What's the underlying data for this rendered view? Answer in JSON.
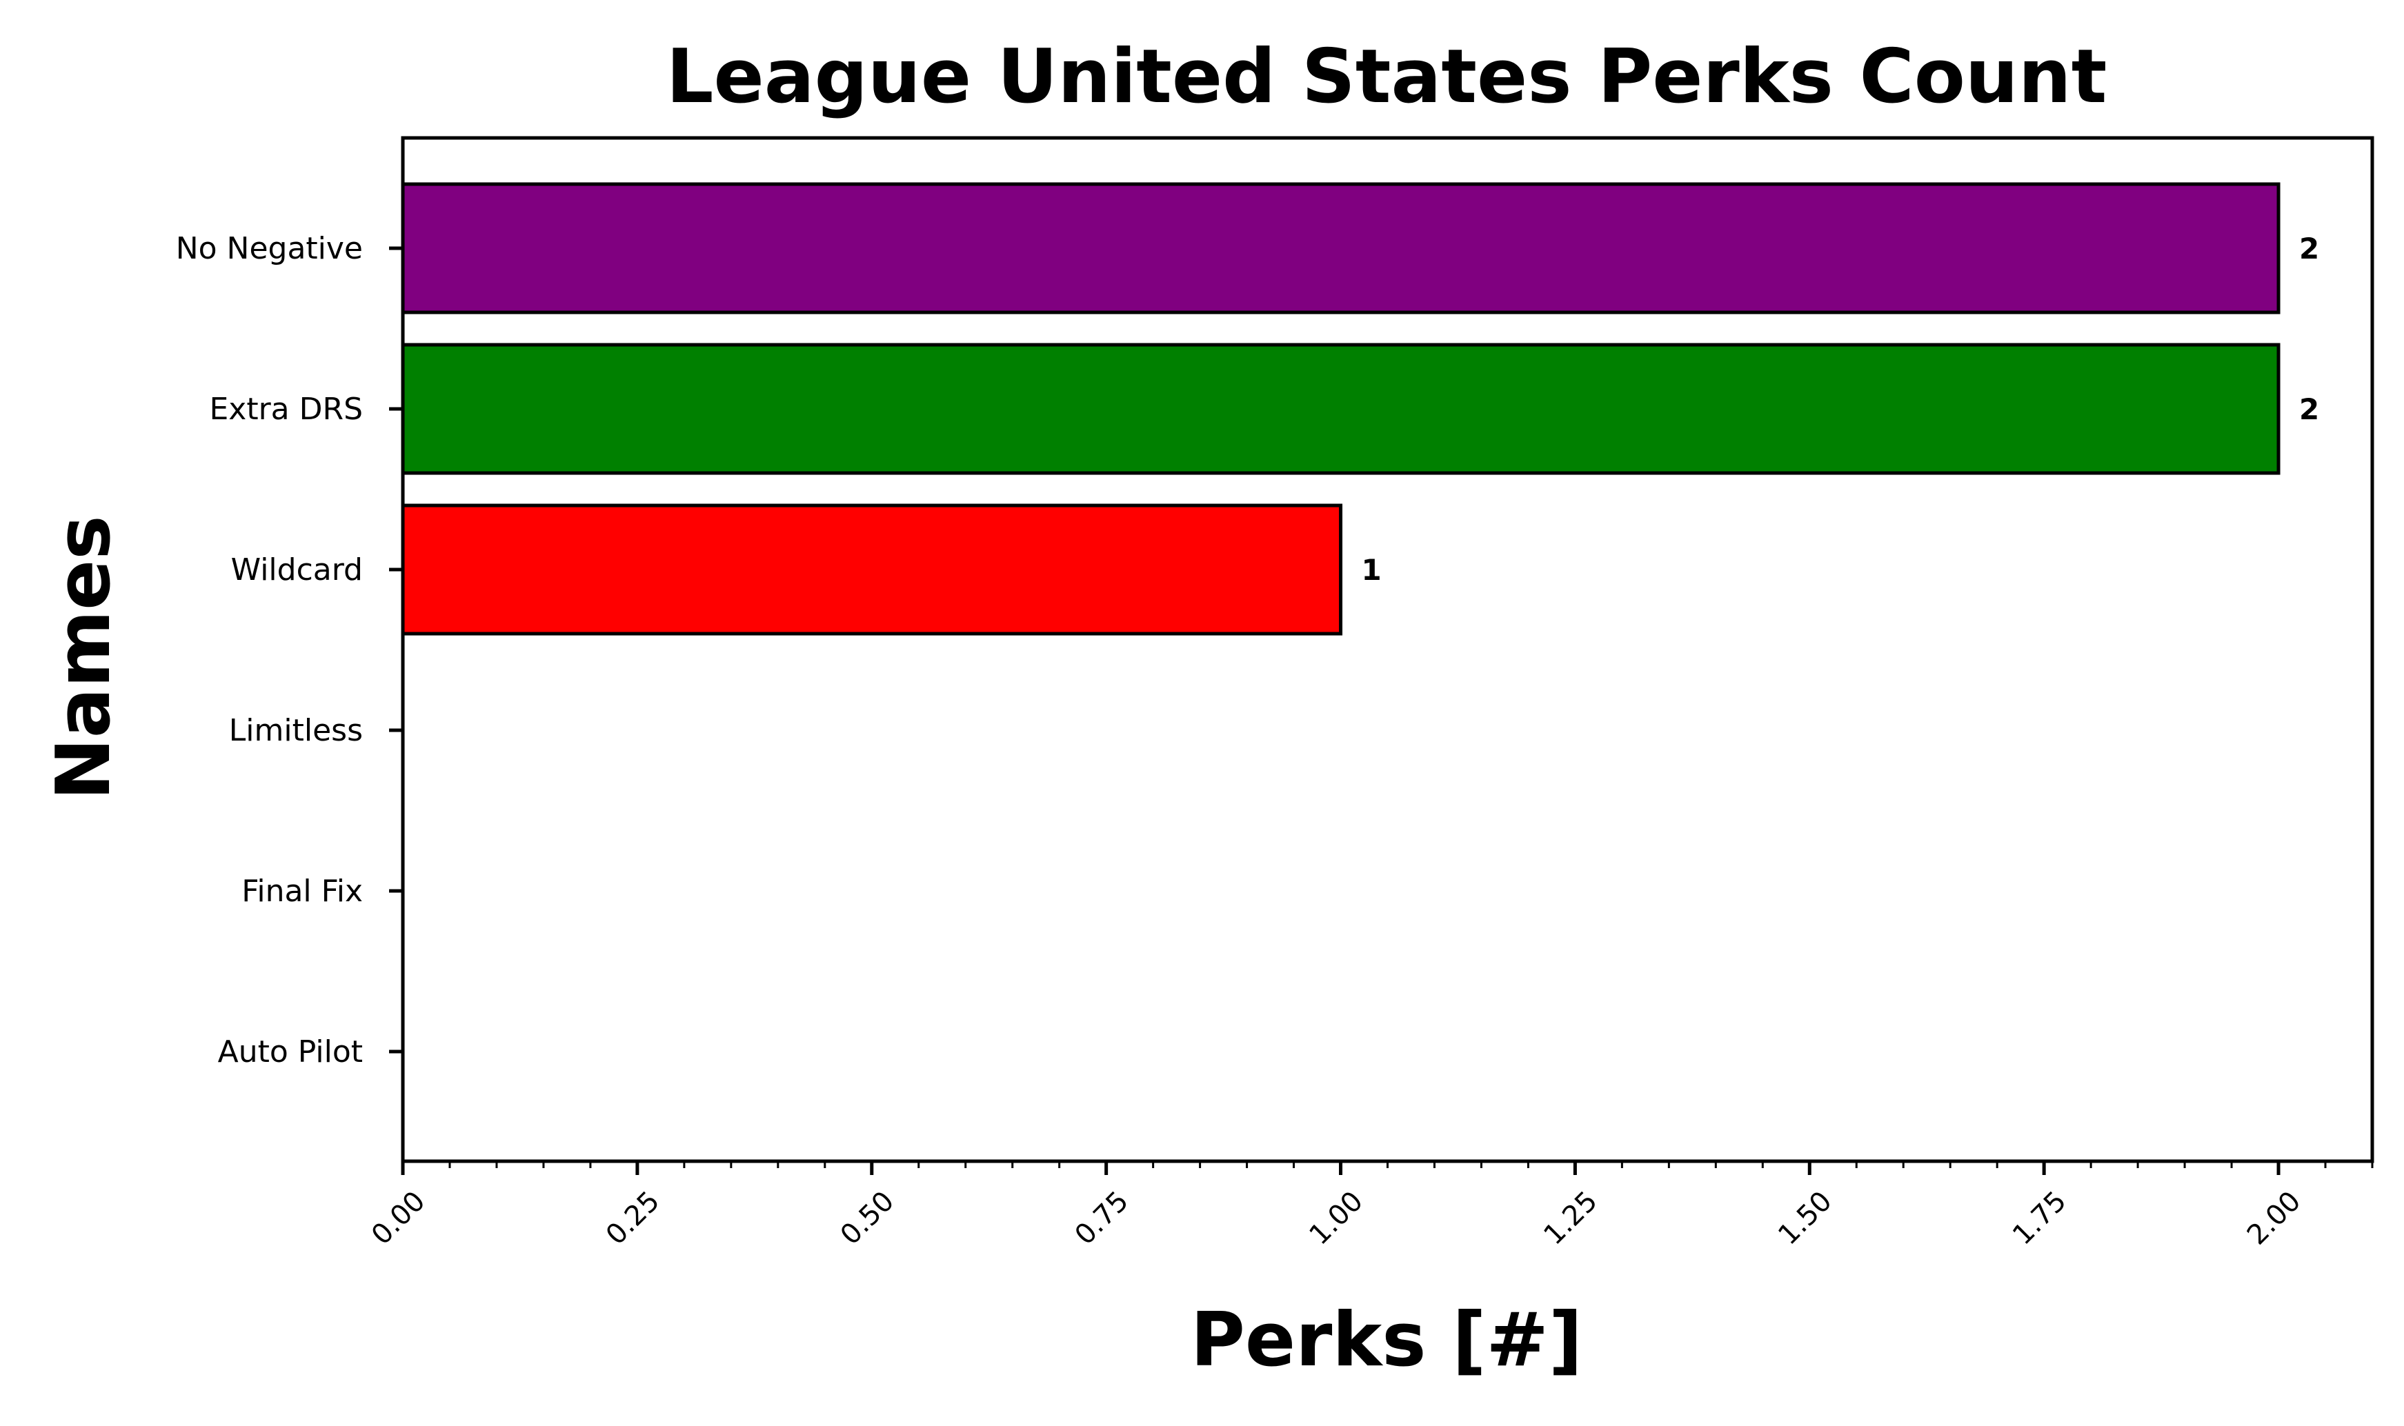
{
  "chart_data": {
    "type": "bar",
    "orientation": "horizontal",
    "title": "League United States Perks Count",
    "xlabel": "Perks [#]",
    "ylabel": "Names",
    "categories": [
      "No Negative",
      "Extra DRS",
      "Wildcard",
      "Limitless",
      "Final Fix",
      "Auto Pilot"
    ],
    "values": [
      2,
      2,
      1,
      0,
      0,
      0
    ],
    "value_labels": [
      "2",
      "2",
      "1",
      "",
      "",
      ""
    ],
    "colors": [
      "#800080",
      "#008000",
      "#ff0000",
      "#0000ff",
      "#ffa500",
      "#ffff00"
    ],
    "edge_color": "#000000",
    "xlim": [
      0,
      2.1
    ],
    "xticks": [
      0,
      0.25,
      0.5,
      0.75,
      1.0,
      1.25,
      1.5,
      1.75,
      2.0
    ],
    "xtick_labels": [
      "0.00",
      "0.25",
      "0.50",
      "0.75",
      "1.00",
      "1.25",
      "1.50",
      "1.75",
      "2.00"
    ],
    "xtick_rotation": 45,
    "minor_ticks": true,
    "grid": false,
    "legend": "none"
  }
}
